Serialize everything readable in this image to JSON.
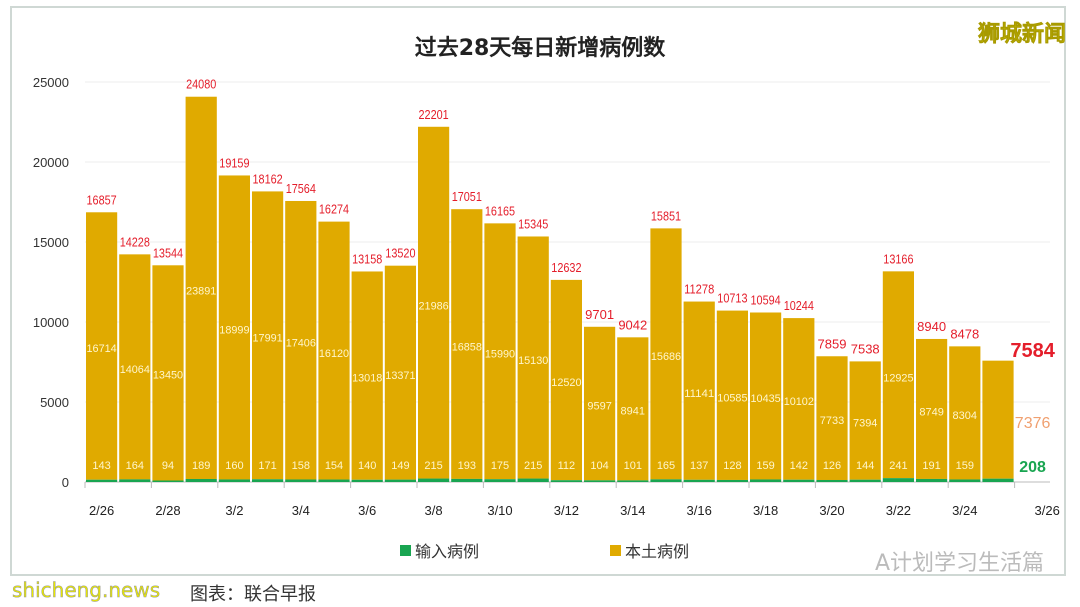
{
  "brand": "狮城新闻",
  "watermark": "A计划学习生活篇",
  "source": "图表：联合早报",
  "site": "shicheng.news",
  "colors": {
    "local": "#e0aa00",
    "imported": "#19a551",
    "total_label": "#e41e2b",
    "local_label": "#fff6cc",
    "callout_local": "#f0a070"
  },
  "chart_data": {
    "type": "bar",
    "stacked": true,
    "title": "过去28天每日新增病例数",
    "ylim": [
      0,
      25000
    ],
    "y_ticks": [
      0,
      5000,
      10000,
      15000,
      20000,
      25000
    ],
    "grid": true,
    "legend_position": "bottom",
    "x_tick_labels": [
      "2/26",
      "2/28",
      "3/2",
      "3/4",
      "3/6",
      "3/8",
      "3/10",
      "3/12",
      "3/14",
      "3/16",
      "3/18",
      "3/20",
      "3/22",
      "3/24",
      "3/26"
    ],
    "series": [
      {
        "name": "输入病例",
        "values": [
          143,
          164,
          94,
          189,
          160,
          171,
          158,
          154,
          140,
          149,
          215,
          193,
          175,
          215,
          112,
          104,
          101,
          165,
          137,
          128,
          159,
          142,
          126,
          144,
          241,
          191,
          159,
          208
        ]
      },
      {
        "name": "本土病例",
        "values": [
          16714,
          14064,
          13450,
          23891,
          18999,
          17991,
          17406,
          16120,
          13018,
          13371,
          21986,
          16858,
          15990,
          15130,
          12520,
          9597,
          8941,
          15686,
          11141,
          10585,
          10435,
          10102,
          7733,
          7394,
          12925,
          8749,
          8304,
          7376
        ]
      }
    ],
    "totals": [
      16857,
      14228,
      13544,
      24080,
      19159,
      18162,
      17564,
      16274,
      13158,
      13520,
      22201,
      17051,
      16165,
      15345,
      12632,
      9701,
      9042,
      15851,
      11278,
      10713,
      10594,
      10244,
      7859,
      7538,
      13166,
      8940,
      8478,
      7584
    ]
  }
}
